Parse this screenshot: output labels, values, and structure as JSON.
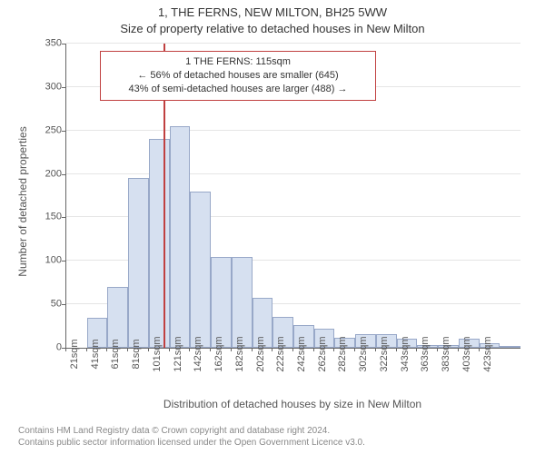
{
  "chart": {
    "type": "histogram",
    "address_line": "1, THE FERNS, NEW MILTON, BH25 5WW",
    "subtitle": "Size of property relative to detached houses in New Milton",
    "y_axis_label": "Number of detached properties",
    "x_axis_title": "Distribution of detached houses by size in New Milton",
    "background_color": "#ffffff",
    "grid_color": "#e5e5e5",
    "axis_color": "#666666",
    "text_color": "#555555",
    "bar_fill": "#d6e0f0",
    "bar_stroke": "#98a8c8",
    "marker_color": "#c04040",
    "ylim": [
      0,
      350
    ],
    "ytick_step": 50,
    "y_ticks": [
      0,
      50,
      100,
      150,
      200,
      250,
      300,
      350
    ],
    "x_labels": [
      "21sqm",
      "41sqm",
      "61sqm",
      "81sqm",
      "101sqm",
      "121sqm",
      "142sqm",
      "162sqm",
      "182sqm",
      "202sqm",
      "222sqm",
      "242sqm",
      "262sqm",
      "282sqm",
      "302sqm",
      "322sqm",
      "343sqm",
      "363sqm",
      "383sqm",
      "403sqm",
      "423sqm"
    ],
    "values": [
      0,
      35,
      70,
      195,
      240,
      255,
      180,
      105,
      105,
      58,
      36,
      26,
      22,
      12,
      16,
      16,
      10,
      3,
      3,
      10,
      5,
      2
    ],
    "marker_index": 5,
    "marker_fraction_in_bin": 0.7,
    "infobox": {
      "line1": "1 THE FERNS: 115sqm",
      "line2": "← 56% of detached houses are smaller (645)",
      "line3": "43% of semi-detached houses are larger (488) →"
    }
  },
  "footer": {
    "line1": "Contains HM Land Registry data © Crown copyright and database right 2024.",
    "line2": "Contains public sector information licensed under the Open Government Licence v3.0."
  }
}
